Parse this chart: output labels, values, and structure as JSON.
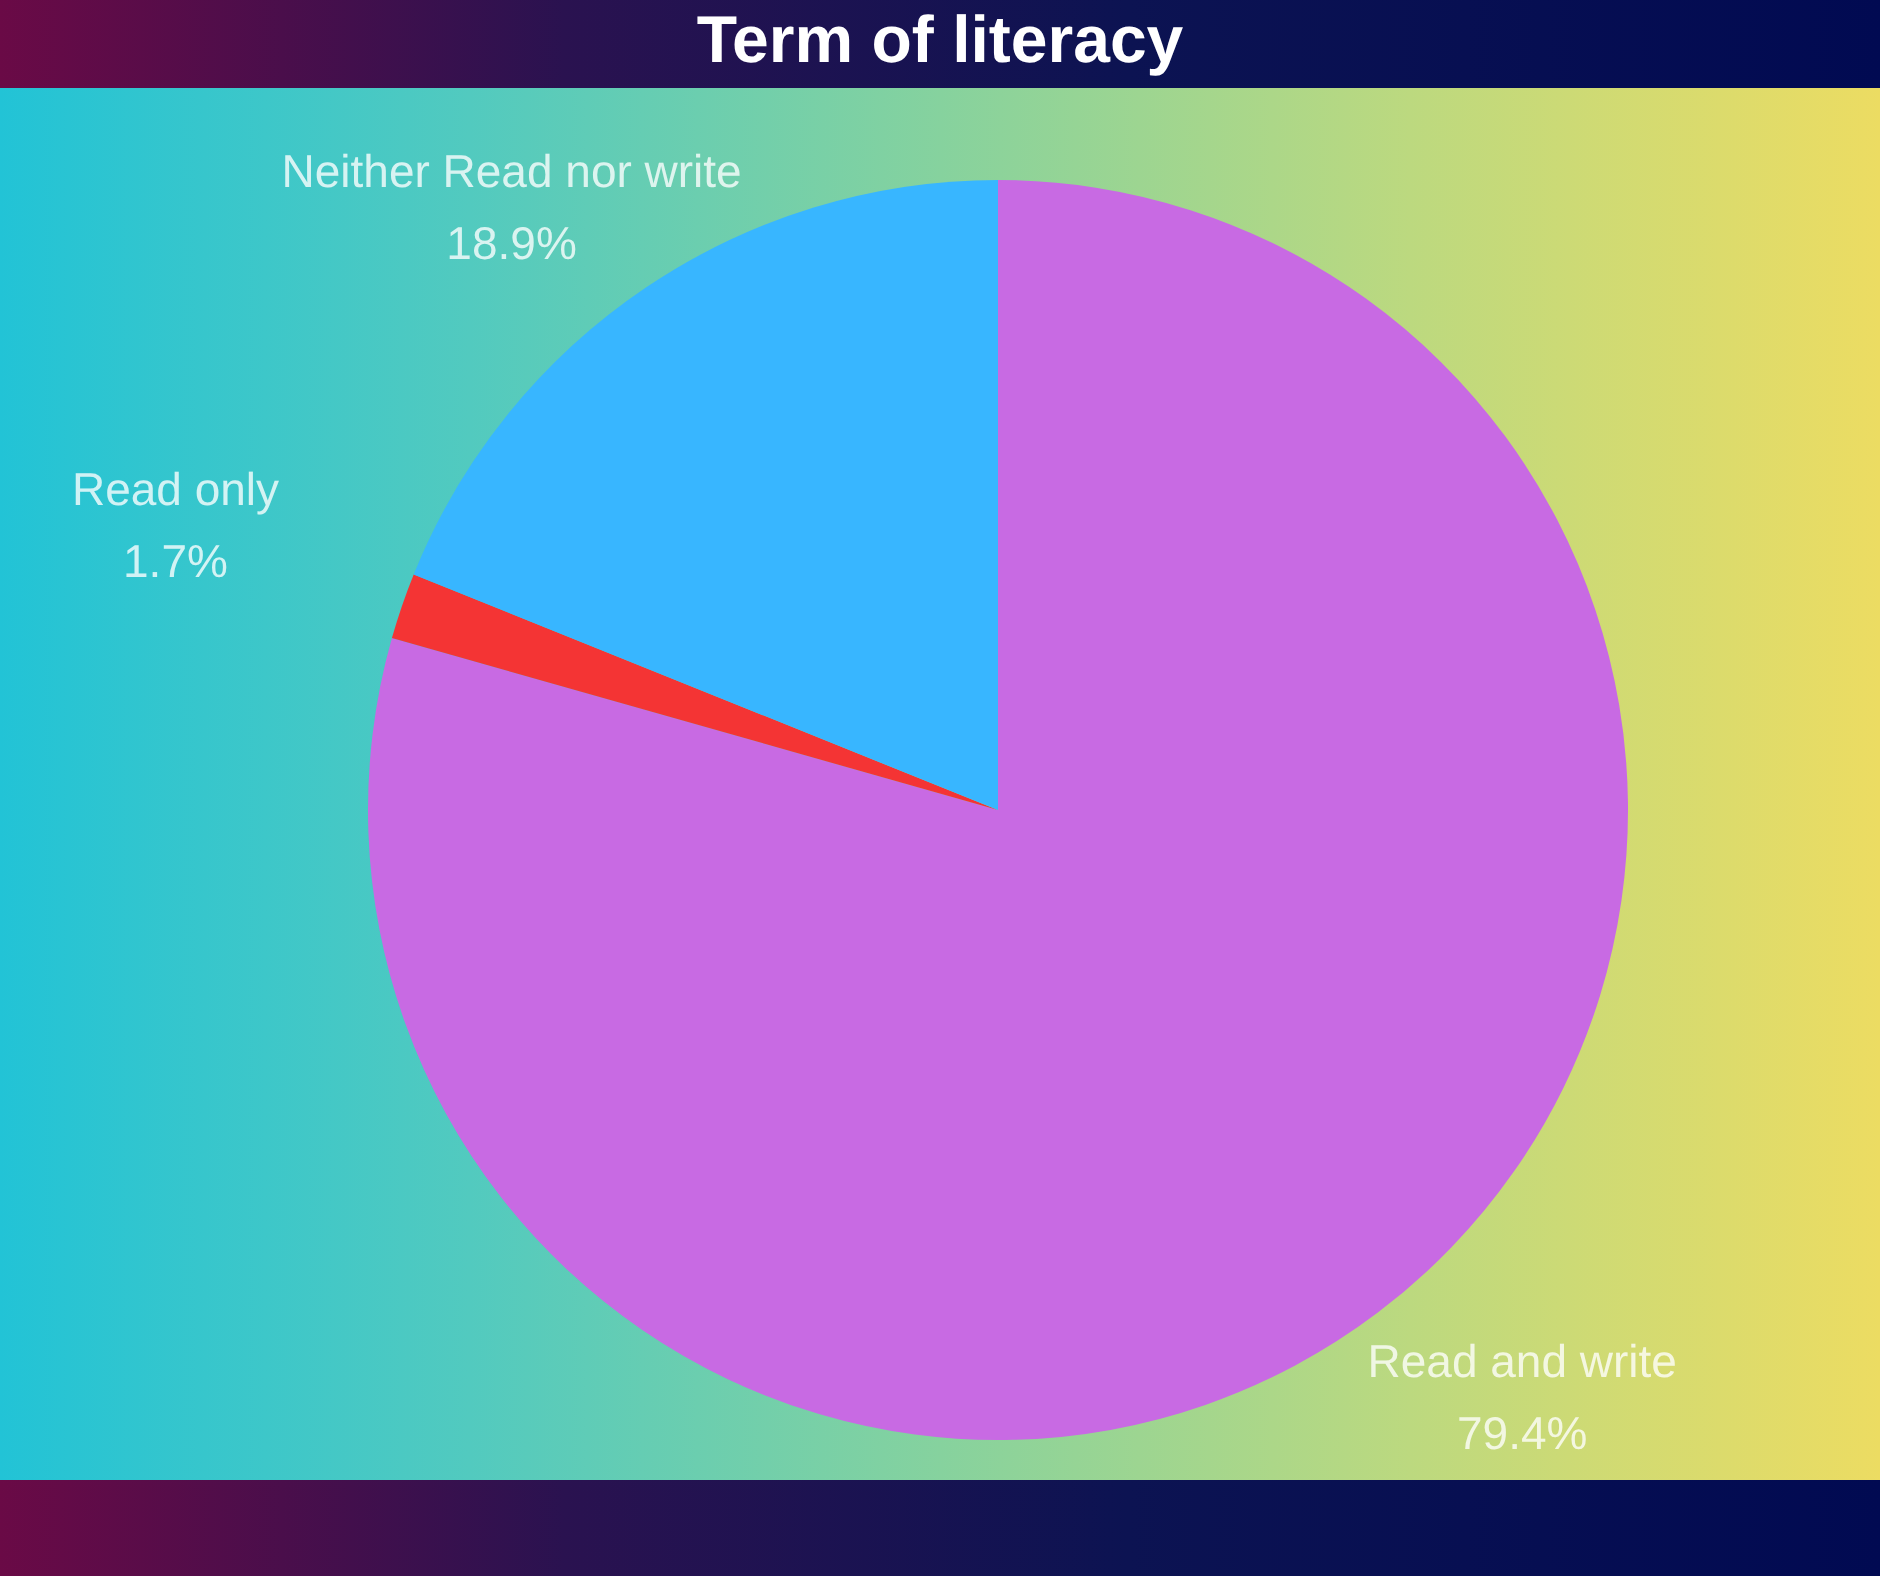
{
  "chart_data": {
    "type": "pie",
    "title": "Term of literacy",
    "categories": [
      "Read and write",
      "Read only",
      "Neither Read nor write"
    ],
    "values": [
      79.4,
      1.7,
      18.9
    ],
    "colors": [
      "#c86ae3",
      "#f43434",
      "#38b6ff"
    ],
    "value_labels": [
      "79.4%",
      "1.7%",
      "18.9%"
    ],
    "legend": false
  }
}
